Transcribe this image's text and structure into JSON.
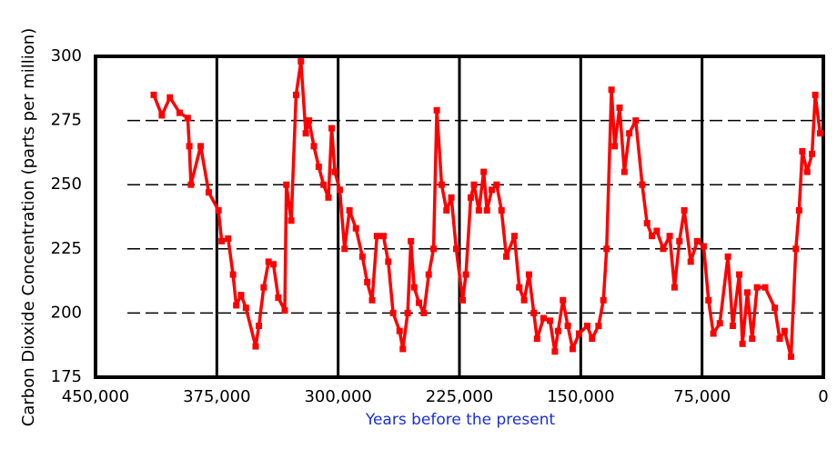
{
  "chart_data": {
    "type": "line",
    "x_label": "Years before the present",
    "y_label": "Carbon Dioxide Concentration (parts per million)",
    "xlim": [
      450000,
      0
    ],
    "ylim": [
      175,
      300
    ],
    "xticks": [
      {
        "value": 450000,
        "label": "450,000"
      },
      {
        "value": 375000,
        "label": "375,000"
      },
      {
        "value": 300000,
        "label": "300,000"
      },
      {
        "value": 225000,
        "label": "225,000"
      },
      {
        "value": 150000,
        "label": "150,000"
      },
      {
        "value": 75000,
        "label": "75,000"
      },
      0
    ],
    "yticks": [
      175,
      200,
      225,
      250,
      275,
      300
    ],
    "grid": true,
    "series": [
      {
        "color": "#ff0000",
        "x": [
          414000,
          409000,
          404000,
          398000,
          393000,
          392000,
          391000,
          385000,
          380000,
          374000,
          372000,
          368000,
          365000,
          363000,
          360000,
          357000,
          351000,
          349000,
          346000,
          343000,
          340000,
          337000,
          333000,
          332000,
          329000,
          326000,
          323000,
          320000,
          318000,
          315000,
          312000,
          309000,
          306000,
          304000,
          302000,
          299000,
          296000,
          293000,
          289000,
          285000,
          282000,
          279000,
          276000,
          272000,
          269000,
          266000,
          262000,
          260000,
          257000,
          255000,
          253000,
          250000,
          247000,
          244000,
          241000,
          239000,
          236000,
          233000,
          230000,
          227000,
          223000,
          221000,
          218000,
          216000,
          213000,
          210000,
          208000,
          205000,
          202000,
          199000,
          196000,
          191000,
          188000,
          185000,
          182000,
          179000,
          177000,
          173000,
          169000,
          166000,
          164000,
          161000,
          158000,
          155000,
          151000,
          146000,
          143000,
          139000,
          136000,
          134000,
          131000,
          129000,
          126000,
          123000,
          120000,
          116000,
          112000,
          109000,
          106000,
          103000,
          99000,
          95000,
          92000,
          89000,
          86000,
          82000,
          78000,
          74000,
          71000,
          68000,
          64000,
          59000,
          56000,
          52000,
          50000,
          47000,
          44000,
          41000,
          36000,
          30000,
          27000,
          24000,
          20000,
          17000,
          15000,
          13000,
          10000,
          7000,
          5000,
          2000
        ],
        "values": [
          285,
          277,
          284,
          278,
          276,
          265,
          250,
          265,
          247,
          240,
          228,
          229,
          215,
          203,
          207,
          202,
          187,
          195,
          210,
          220,
          219,
          206,
          201,
          250,
          236,
          285,
          298,
          270,
          275,
          265,
          257,
          250,
          245,
          272,
          255,
          248,
          225,
          240,
          233,
          222,
          212,
          205,
          230,
          230,
          220,
          200,
          193,
          186,
          200,
          228,
          210,
          204,
          200,
          215,
          225,
          279,
          250,
          240,
          245,
          225,
          205,
          215,
          245,
          250,
          240,
          255,
          240,
          248,
          250,
          240,
          222,
          230,
          210,
          205,
          215,
          200,
          190,
          198,
          197,
          185,
          193,
          205,
          195,
          186,
          192,
          195,
          190,
          195,
          205,
          225,
          287,
          265,
          280,
          255,
          270,
          275,
          250,
          235,
          230,
          232,
          225,
          230,
          210,
          228,
          240,
          220,
          228,
          226,
          205,
          192,
          196,
          222,
          195,
          215,
          188,
          208,
          190,
          210,
          210,
          202,
          190,
          193,
          183,
          225,
          240,
          263,
          255,
          262,
          285,
          270
        ]
      }
    ]
  }
}
